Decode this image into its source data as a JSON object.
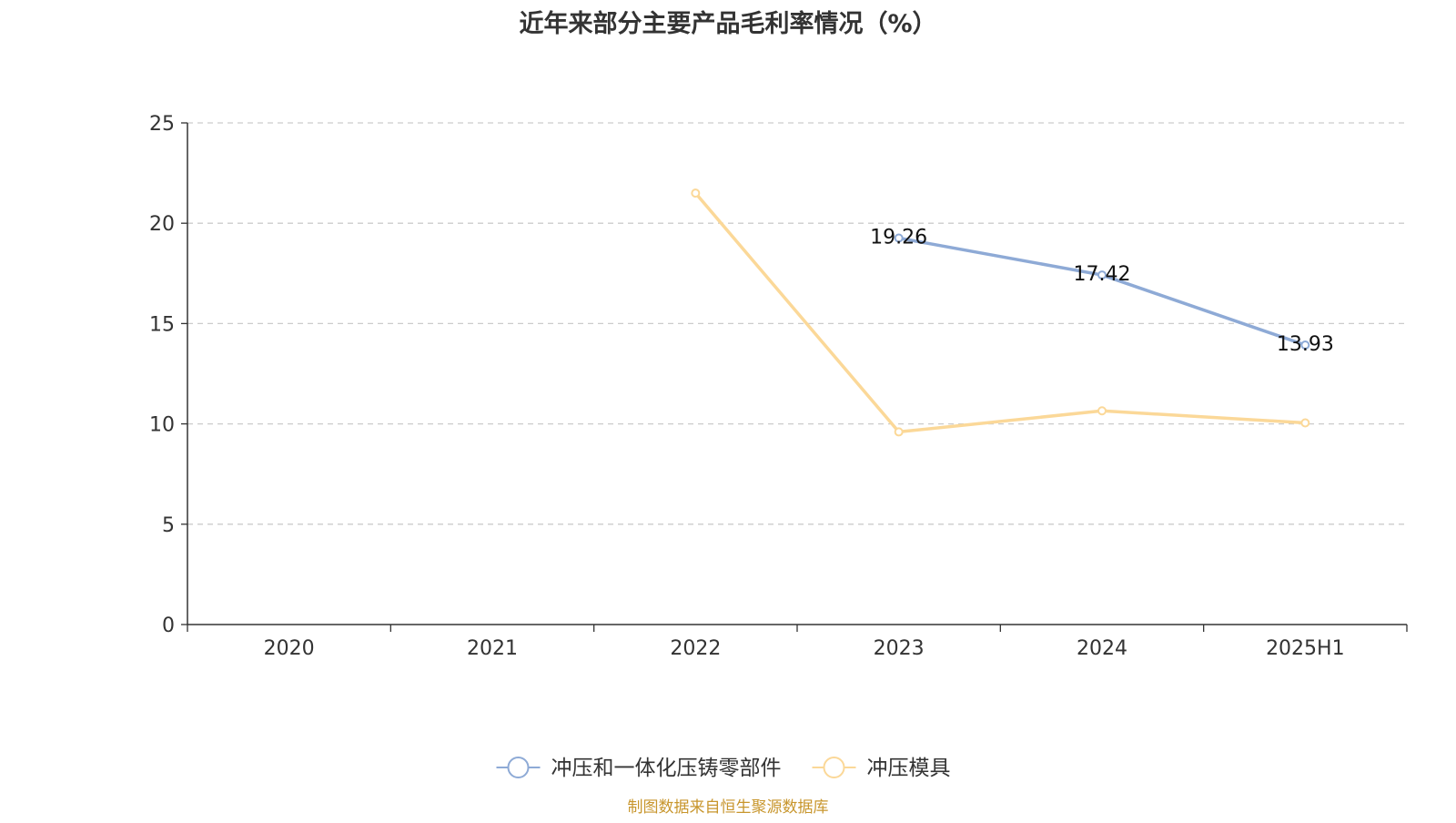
{
  "chart_data": {
    "type": "line",
    "title": "近年来部分主要产品毛利率情况（%）",
    "categories": [
      "2020",
      "2021",
      "2022",
      "2023",
      "2024",
      "2025H1"
    ],
    "ylim": [
      0,
      25
    ],
    "yticks": [
      0,
      5,
      10,
      15,
      20,
      25
    ],
    "grid": true,
    "legend_position": "bottom",
    "series": [
      {
        "name": "冲压和一体化压铸零部件",
        "color": "#8eaad6",
        "values": [
          null,
          null,
          null,
          19.26,
          17.42,
          13.93
        ],
        "labels": [
          "",
          "",
          "",
          "19.26",
          "17.42",
          "13.93"
        ]
      },
      {
        "name": "冲压模具",
        "color": "#fbd898",
        "values": [
          null,
          null,
          21.5,
          9.6,
          10.65,
          10.05
        ],
        "labels": []
      }
    ]
  },
  "footer": {
    "source": "制图数据来自恒生聚源数据库"
  }
}
